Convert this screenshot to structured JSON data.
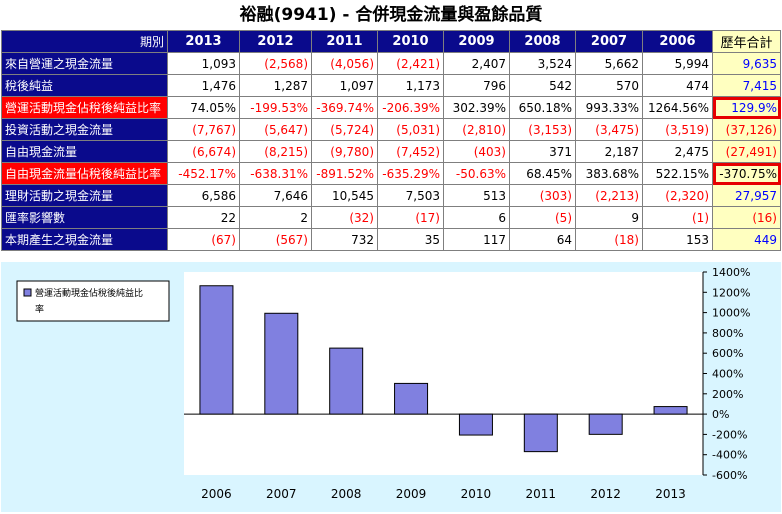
{
  "title": "裕融(9941) - 合併現金流量與盈餘品質",
  "table": {
    "corner_label": "期別",
    "years": [
      "2013",
      "2012",
      "2011",
      "2010",
      "2009",
      "2008",
      "2007",
      "2006"
    ],
    "total_label": "歷年合計",
    "rows": [
      {
        "label": "來自營運之現金流量",
        "highlight": false,
        "values": [
          "1,093",
          "(2,568)",
          "(4,056)",
          "(2,421)",
          "2,407",
          "3,524",
          "5,662",
          "5,994"
        ],
        "total": "9,635",
        "boxed": false
      },
      {
        "label": "稅後純益",
        "highlight": false,
        "values": [
          "1,476",
          "1,287",
          "1,097",
          "1,173",
          "796",
          "542",
          "570",
          "474"
        ],
        "total": "7,415",
        "boxed": false
      },
      {
        "label": "營運活動現金佔稅後純益比率",
        "highlight": true,
        "values": [
          "74.05%",
          "-199.53%",
          "-369.74%",
          "-206.39%",
          "302.39%",
          "650.18%",
          "993.33%",
          "1264.56%"
        ],
        "total": "129.9%",
        "boxed": true
      },
      {
        "label": "投資活動之現金流量",
        "highlight": false,
        "values": [
          "(7,767)",
          "(5,647)",
          "(5,724)",
          "(5,031)",
          "(2,810)",
          "(3,153)",
          "(3,475)",
          "(3,519)"
        ],
        "total": "(37,126)",
        "boxed": false
      },
      {
        "label": "自由現金流量",
        "highlight": false,
        "values": [
          "(6,674)",
          "(8,215)",
          "(9,780)",
          "(7,452)",
          "(403)",
          "371",
          "2,187",
          "2,475"
        ],
        "total": "(27,491)",
        "boxed": false
      },
      {
        "label": "自由現金流量佔稅後純益比率",
        "highlight": true,
        "values": [
          "-452.17%",
          "-638.31%",
          "-891.52%",
          "-635.29%",
          "-50.63%",
          "68.45%",
          "383.68%",
          "522.15%"
        ],
        "total": "-370.75%",
        "boxed": true
      },
      {
        "label": "理財活動之現金流量",
        "highlight": false,
        "values": [
          "6,586",
          "7,646",
          "10,545",
          "7,503",
          "513",
          "(303)",
          "(2,213)",
          "(2,320)"
        ],
        "total": "27,957",
        "boxed": false
      },
      {
        "label": "匯率影響數",
        "highlight": false,
        "values": [
          "22",
          "2",
          "(32)",
          "(17)",
          "6",
          "(5)",
          "9",
          "(1)"
        ],
        "total": "(16)",
        "boxed": false
      },
      {
        "label": "本期產生之現金流量",
        "highlight": false,
        "values": [
          "(67)",
          "(567)",
          "732",
          "35",
          "117",
          "64",
          "(18)",
          "153"
        ],
        "total": "449",
        "boxed": false
      }
    ]
  },
  "colors": {
    "header_bg": "#0a0a8c",
    "highlight_bg": "#ff0000",
    "total_bg": "#ffffc0",
    "chart_bg": "#d9f5ff",
    "bar_fill": "#8080e0",
    "bar_stroke": "#000000"
  },
  "chart_data": {
    "type": "bar",
    "title": "",
    "xlabel": "",
    "ylabel": "",
    "categories": [
      "2006",
      "2007",
      "2008",
      "2009",
      "2010",
      "2011",
      "2012",
      "2013"
    ],
    "series": [
      {
        "name": "營運活動現金佔稅後純益比率",
        "values": [
          1264.56,
          993.33,
          650.18,
          302.39,
          -206.39,
          -369.74,
          -199.53,
          74.05
        ]
      }
    ],
    "ylim": [
      -600,
      1400
    ],
    "yticks": [
      1400,
      1200,
      1000,
      800,
      600,
      400,
      200,
      0,
      -200,
      -400,
      -600
    ],
    "ytick_labels": [
      "1400%",
      "1200%",
      "1000%",
      "800%",
      "600%",
      "400%",
      "200%",
      "0%",
      "-200%",
      "-400%",
      "-600%"
    ],
    "legend": {
      "position": "top-left",
      "line1": "營運活動現金佔稅後純益比",
      "line2": "率"
    },
    "grid": false
  }
}
